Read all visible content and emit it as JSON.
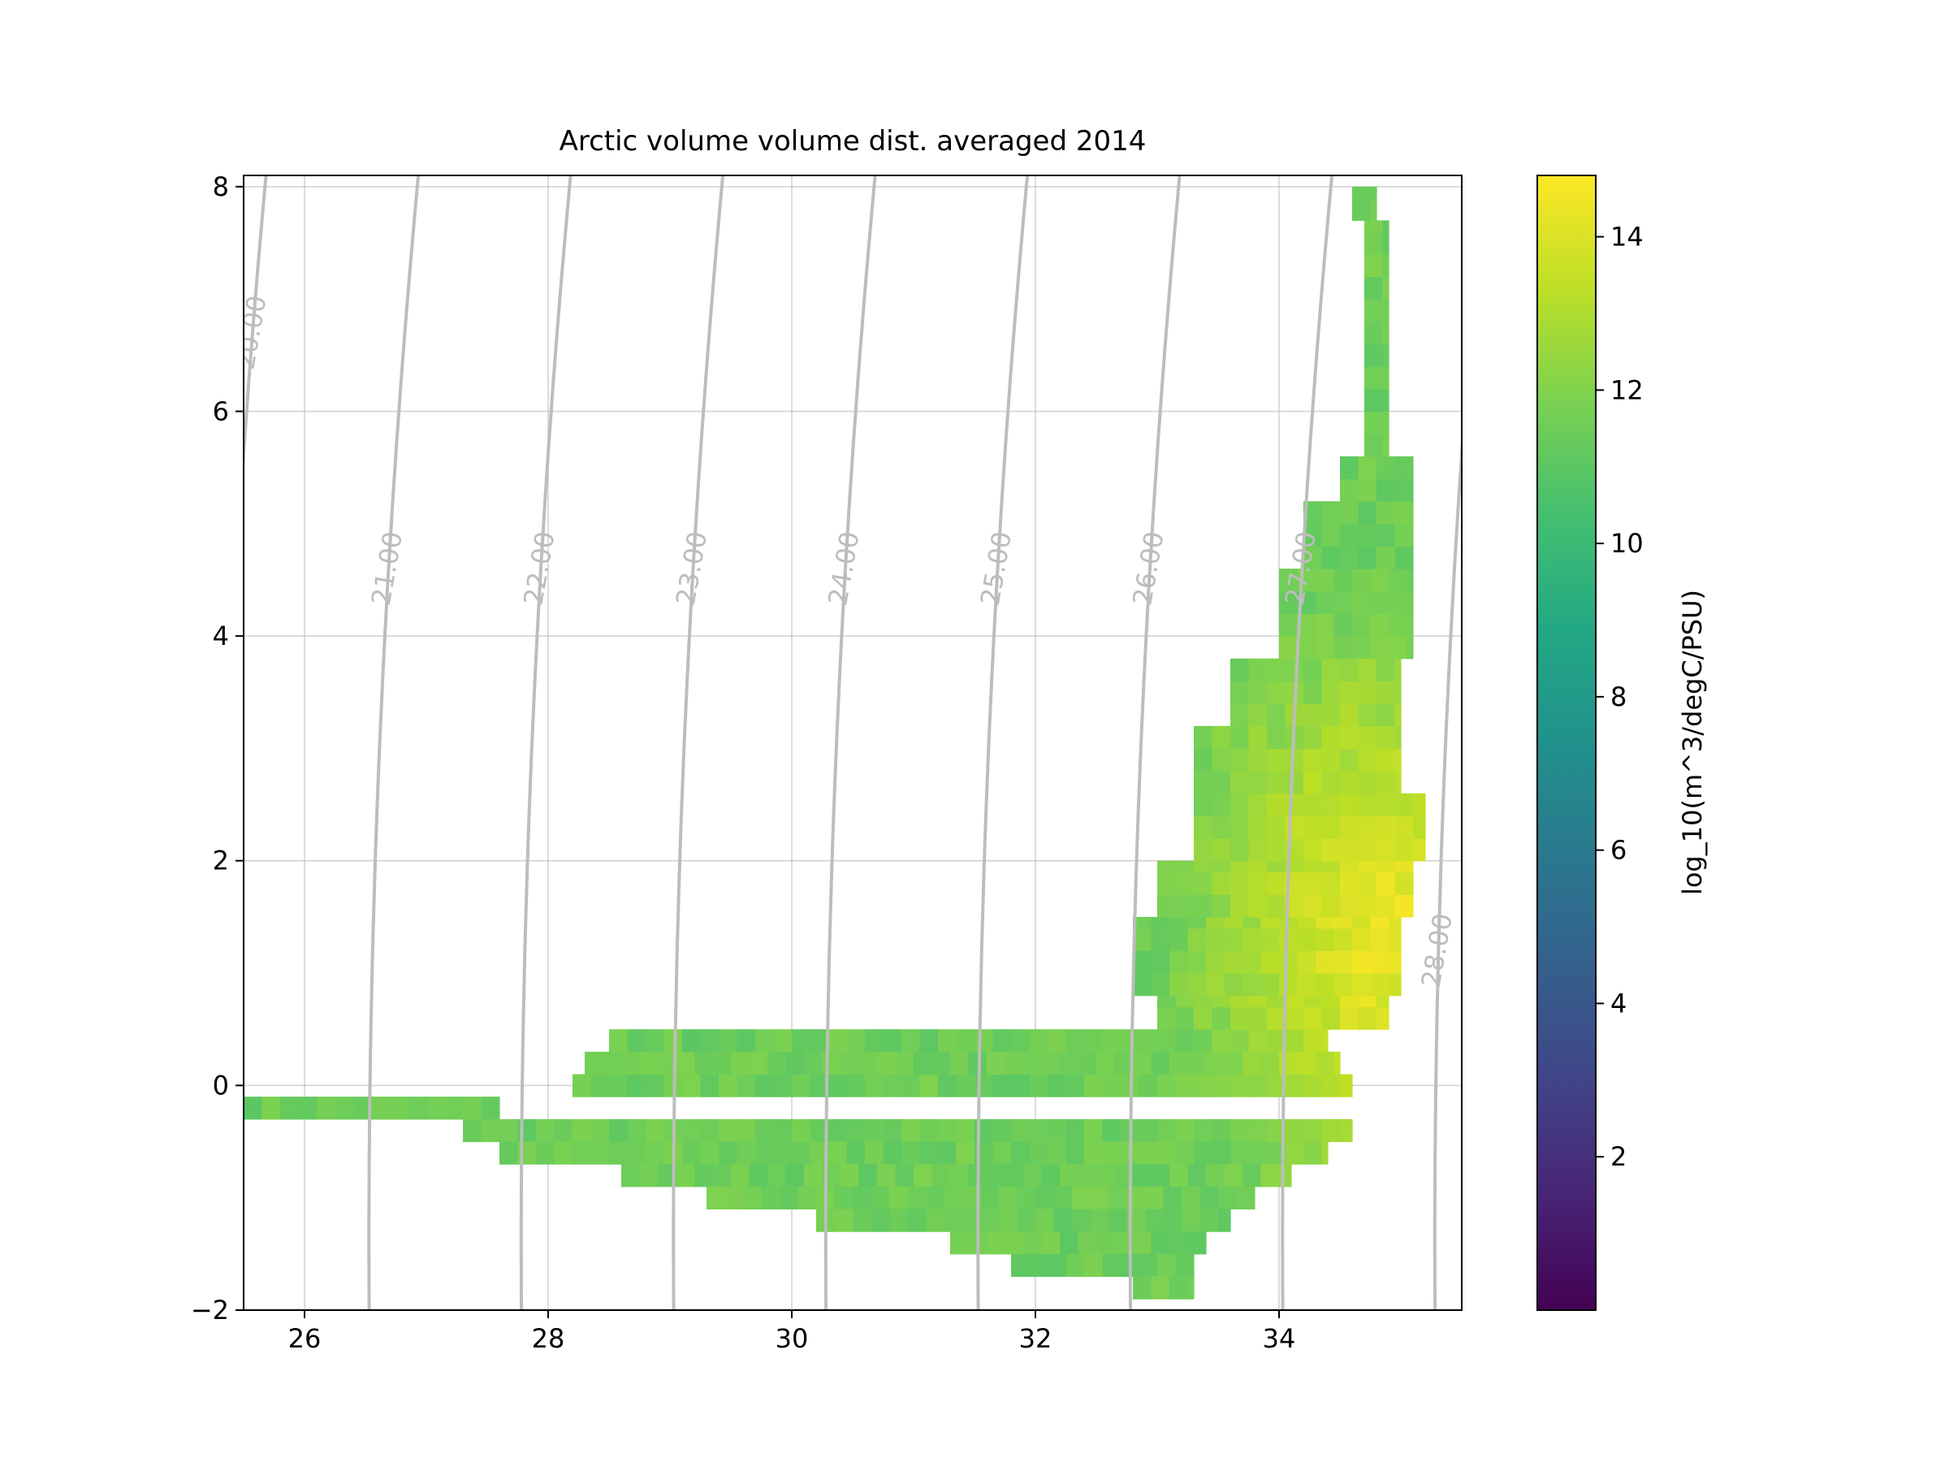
{
  "chart_data": {
    "type": "heatmap",
    "title": "Arctic volume volume dist. averaged 2014",
    "xlabel": "",
    "ylabel": "",
    "xlim": [
      25.5,
      35.5
    ],
    "ylim": [
      -2,
      8.1
    ],
    "xticks": [
      26,
      28,
      30,
      32,
      34
    ],
    "yticks": [
      -2,
      0,
      2,
      4,
      6,
      8
    ],
    "xtick_labels": [
      "26",
      "28",
      "30",
      "32",
      "34"
    ],
    "ytick_labels": [
      "−2",
      "0",
      "2",
      "4",
      "6",
      "8"
    ],
    "grid": true,
    "cell_size": {
      "dx": 0.15,
      "dy": 0.2
    },
    "colormap": "viridis",
    "colorbar": {
      "label": "log_10(m^3/degC/PSU)",
      "range": [
        0,
        14.8
      ],
      "ticks": [
        2,
        4,
        6,
        8,
        10,
        12,
        14
      ],
      "tick_labels": [
        "2",
        "4",
        "6",
        "8",
        "10",
        "12",
        "14"
      ]
    },
    "density_contours": {
      "color": "#bdbdbd",
      "levels": [
        20,
        21,
        22,
        23,
        24,
        25,
        26,
        27,
        28
      ],
      "labels": [
        "20.00",
        "21.00",
        "22.00",
        "23.00",
        "24.00",
        "25.00",
        "26.00",
        "27.00",
        "28.00"
      ]
    },
    "bands": [
      {
        "y": [
          -0.3,
          -0.1
        ],
        "x": [
          25.5,
          27.6
        ]
      },
      {
        "y": [
          -0.5,
          -0.3
        ],
        "x": [
          27.3,
          34.6
        ]
      },
      {
        "y": [
          -0.7,
          -0.5
        ],
        "x": [
          27.6,
          34.4
        ]
      },
      {
        "y": [
          -0.9,
          -0.7
        ],
        "x": [
          28.6,
          34.1
        ]
      },
      {
        "y": [
          -1.1,
          -0.9
        ],
        "x": [
          29.3,
          33.8
        ]
      },
      {
        "y": [
          -1.3,
          -1.1
        ],
        "x": [
          30.2,
          33.6
        ]
      },
      {
        "y": [
          -1.5,
          -1.3
        ],
        "x": [
          31.3,
          33.4
        ]
      },
      {
        "y": [
          -1.7,
          -1.5
        ],
        "x": [
          31.8,
          33.3
        ]
      },
      {
        "y": [
          -1.9,
          -1.7
        ],
        "x": [
          32.8,
          33.3
        ]
      },
      {
        "y": [
          -0.1,
          0.1
        ],
        "x": [
          28.2,
          34.6
        ]
      },
      {
        "y": [
          0.1,
          0.3
        ],
        "x": [
          28.3,
          34.5
        ]
      },
      {
        "y": [
          0.3,
          0.5
        ],
        "x": [
          28.5,
          34.4
        ]
      },
      {
        "y": [
          0.5,
          0.8
        ],
        "x": [
          33.0,
          34.9
        ]
      },
      {
        "y": [
          0.8,
          1.5
        ],
        "x": [
          32.8,
          35.0
        ]
      },
      {
        "y": [
          1.5,
          2.0
        ],
        "x": [
          33.0,
          35.1
        ]
      },
      {
        "y": [
          2.0,
          2.6
        ],
        "x": [
          33.3,
          35.2
        ]
      },
      {
        "y": [
          2.6,
          3.2
        ],
        "x": [
          33.3,
          35.0
        ]
      },
      {
        "y": [
          3.2,
          3.8
        ],
        "x": [
          33.6,
          35.0
        ]
      },
      {
        "y": [
          3.8,
          4.6
        ],
        "x": [
          34.0,
          35.1
        ]
      },
      {
        "y": [
          4.6,
          5.2
        ],
        "x": [
          34.2,
          35.1
        ]
      },
      {
        "y": [
          5.2,
          5.6
        ],
        "x": [
          34.5,
          35.1
        ]
      },
      {
        "y": [
          5.6,
          6.6
        ],
        "x": [
          34.7,
          34.9
        ]
      },
      {
        "y": [
          6.6,
          7.7
        ],
        "x": [
          34.7,
          34.9
        ]
      },
      {
        "y": [
          7.7,
          8.0
        ],
        "x": [
          34.6,
          34.8
        ]
      }
    ],
    "value_peak": {
      "T": 1.3,
      "S": 34.8,
      "value": 14.6
    }
  }
}
